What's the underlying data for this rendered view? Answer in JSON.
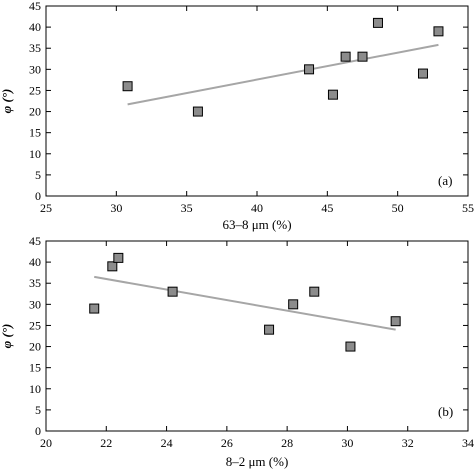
{
  "chart_data": [
    {
      "type": "scatter",
      "panel_label": "(a)",
      "xlabel": "63–8 μm (%)",
      "ylabel": "φ (°)",
      "xlim": [
        25,
        55
      ],
      "ylim": [
        0,
        45
      ],
      "xticks": [
        "25",
        "30",
        "35",
        "40",
        "45",
        "50",
        "55"
      ],
      "yticks": [
        "0",
        "5",
        "10",
        "15",
        "20",
        "25",
        "30",
        "35",
        "40",
        "45"
      ],
      "grid": false,
      "marker_color": "#8c8c8c",
      "line_color": "#a6a6a6",
      "points": [
        {
          "x": 30.8,
          "y": 26
        },
        {
          "x": 35.8,
          "y": 20
        },
        {
          "x": 43.7,
          "y": 30
        },
        {
          "x": 45.4,
          "y": 24
        },
        {
          "x": 46.3,
          "y": 33
        },
        {
          "x": 47.5,
          "y": 33
        },
        {
          "x": 48.6,
          "y": 41
        },
        {
          "x": 51.8,
          "y": 29
        },
        {
          "x": 52.9,
          "y": 39
        }
      ],
      "trendline": [
        {
          "x": 30.8,
          "y": 21.7
        },
        {
          "x": 52.9,
          "y": 35.8
        }
      ]
    },
    {
      "type": "scatter",
      "panel_label": "(b)",
      "xlabel": "8–2 μm (%)",
      "ylabel": "φ (°)",
      "xlim": [
        20,
        34
      ],
      "ylim": [
        0,
        45
      ],
      "xticks": [
        "20",
        "22",
        "24",
        "26",
        "28",
        "30",
        "32",
        "34"
      ],
      "yticks": [
        "0",
        "5",
        "10",
        "15",
        "20",
        "25",
        "30",
        "35",
        "40",
        "45"
      ],
      "grid": false,
      "marker_color": "#8c8c8c",
      "line_color": "#a6a6a6",
      "points": [
        {
          "x": 21.6,
          "y": 29
        },
        {
          "x": 22.2,
          "y": 39
        },
        {
          "x": 22.4,
          "y": 41
        },
        {
          "x": 24.2,
          "y": 33
        },
        {
          "x": 27.4,
          "y": 24
        },
        {
          "x": 28.2,
          "y": 30
        },
        {
          "x": 28.9,
          "y": 33
        },
        {
          "x": 30.1,
          "y": 20
        },
        {
          "x": 31.6,
          "y": 26
        }
      ],
      "trendline": [
        {
          "x": 21.6,
          "y": 36.5
        },
        {
          "x": 31.6,
          "y": 24.0
        }
      ]
    }
  ]
}
